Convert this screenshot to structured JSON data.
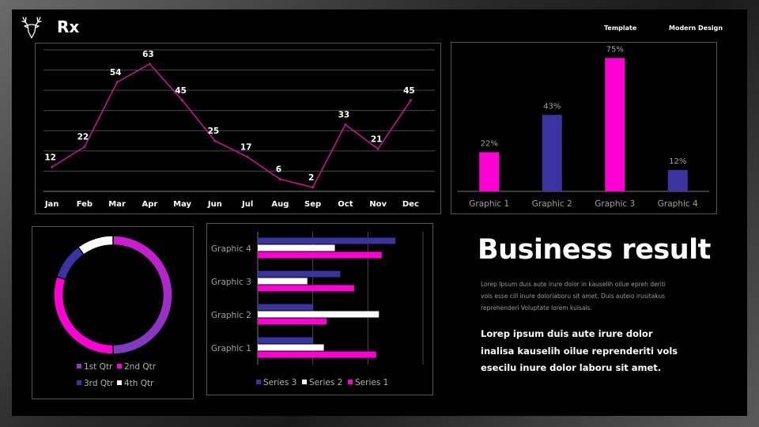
{
  "header": {
    "brand": "Rx",
    "links": [
      "Template",
      "Modern Design"
    ]
  },
  "colors": {
    "magenta": "#ff00d4",
    "navy": "#3a33a0",
    "white": "#ffffff",
    "purple": "#7a3cc0",
    "bg": "#000000"
  },
  "icons": {
    "logo": "deer-head-icon"
  },
  "text": {
    "headline": "Business result",
    "small_paragraph": "Lorep Ipsum duis aute irure dolor in kauselih oilue epreh deriti vols esse cill inure doloriaboru sit amet. Duis auteio irusitakus reprehenderi Voluptate lorem kulsais.",
    "big_paragraph": "Lorep ipsum duis aute irure dolor inalisa kauselih oilue reprenderiti vols esecilu inure dolor laboru sit amet."
  },
  "chart_data": [
    {
      "type": "line",
      "categories": [
        "Jan",
        "Feb",
        "Mar",
        "Apr",
        "May",
        "Jun",
        "Jul",
        "Aug",
        "Sep",
        "Oct",
        "Nov",
        "Dec"
      ],
      "values": [
        12,
        22,
        54,
        63,
        45,
        25,
        17,
        6,
        2,
        33,
        21,
        45
      ],
      "ylim": [
        0,
        70
      ],
      "grid": true,
      "color": "#c0148f"
    },
    {
      "type": "bar",
      "categories": [
        "Graphic 1",
        "Graphic 2",
        "Graphic 3",
        "Graphic 4"
      ],
      "values": [
        22,
        43,
        75,
        12
      ],
      "labels": [
        "22%",
        "43%",
        "75%",
        "12%"
      ],
      "colors": [
        "#ff00d4",
        "#3a33a0",
        "#ff00d4",
        "#3a33a0"
      ],
      "ylim": [
        0,
        80
      ]
    },
    {
      "type": "pie",
      "subtype": "doughnut",
      "categories": [
        "1st Qtr",
        "2nd Qtr",
        "3rd Qtr",
        "4th Qtr"
      ],
      "values": [
        50,
        30,
        10,
        10
      ],
      "colors": [
        "#8a3cc8",
        "#ff00d4",
        "#3a33a0",
        "#ffffff"
      ],
      "legend": "bottom"
    },
    {
      "type": "bar",
      "orientation": "horizontal",
      "categories": [
        "Graphic 1",
        "Graphic 2",
        "Graphic 3",
        "Graphic 4"
      ],
      "series": [
        {
          "name": "Series 1",
          "color": "#ff00d4",
          "values": [
            4.3,
            2.5,
            3.5,
            4.5
          ]
        },
        {
          "name": "Series 2",
          "color": "#ffffff",
          "values": [
            2.4,
            4.4,
            1.8,
            2.8
          ]
        },
        {
          "name": "Series 3",
          "color": "#3a33a0",
          "values": [
            2.0,
            2.0,
            3.0,
            5.0
          ]
        }
      ],
      "legend_order": [
        "Series 3",
        "Series 2",
        "Series 1"
      ],
      "xlim": [
        0,
        6
      ],
      "legend": "bottom",
      "grid": true
    }
  ]
}
